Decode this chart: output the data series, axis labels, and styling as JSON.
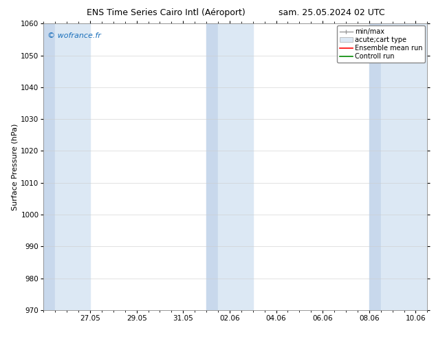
{
  "title_left": "ENS Time Series Cairo Intl (Aéroport)",
  "title_right": "sam. 25.05.2024 02 UTC",
  "ylabel": "Surface Pressure (hPa)",
  "watermark": "© wofrance.fr",
  "ylim": [
    970,
    1060
  ],
  "yticks": [
    970,
    980,
    990,
    1000,
    1010,
    1020,
    1030,
    1040,
    1050,
    1060
  ],
  "xtick_labels": [
    "27.05",
    "29.05",
    "31.05",
    "02.06",
    "04.06",
    "06.06",
    "08.06",
    "10.06"
  ],
  "xtick_positions": [
    2,
    4,
    6,
    8,
    10,
    12,
    14,
    16
  ],
  "xlim": [
    0,
    16.5
  ],
  "shade_regions": [
    {
      "start": 0.0,
      "end": 0.5,
      "color": "#c8d8ec"
    },
    {
      "start": 0.5,
      "end": 2.0,
      "color": "#dce8f4"
    },
    {
      "start": 7.0,
      "end": 7.5,
      "color": "#c8d8ec"
    },
    {
      "start": 7.5,
      "end": 9.0,
      "color": "#dce8f4"
    },
    {
      "start": 14.0,
      "end": 14.5,
      "color": "#c8d8ec"
    },
    {
      "start": 14.5,
      "end": 16.5,
      "color": "#dce8f4"
    }
  ],
  "bg_color": "#ffffff",
  "title_fontsize": 9,
  "axis_fontsize": 8,
  "tick_fontsize": 7.5,
  "watermark_color": "#1a6fba",
  "watermark_fontsize": 8,
  "legend_fontsize": 7,
  "ylabel_fontsize": 8
}
